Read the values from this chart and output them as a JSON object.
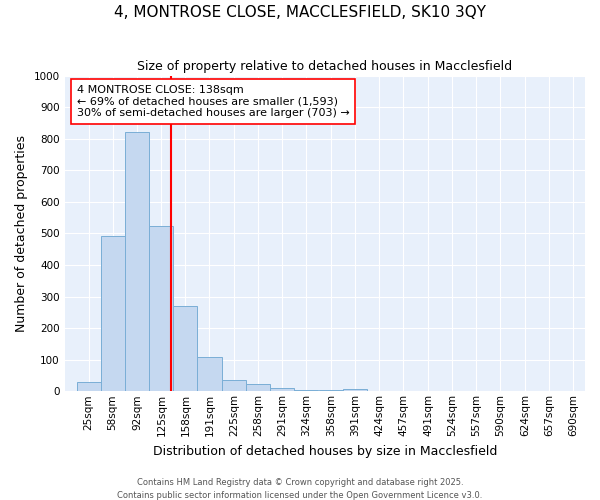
{
  "title1": "4, MONTROSE CLOSE, MACCLESFIELD, SK10 3QY",
  "title2": "Size of property relative to detached houses in Macclesfield",
  "xlabel": "Distribution of detached houses by size in Macclesfield",
  "ylabel": "Number of detached properties",
  "bar_color": "#c5d8f0",
  "bar_edge_color": "#7aaed6",
  "background_color": "#e8f0fb",
  "bin_centers": [
    25,
    58,
    92,
    125,
    158,
    191,
    225,
    258,
    291,
    324,
    358,
    391,
    424,
    457,
    491,
    524,
    557,
    590,
    624,
    657,
    690
  ],
  "bin_labels": [
    "25sqm",
    "58sqm",
    "92sqm",
    "125sqm",
    "158sqm",
    "191sqm",
    "225sqm",
    "258sqm",
    "291sqm",
    "324sqm",
    "358sqm",
    "391sqm",
    "424sqm",
    "457sqm",
    "491sqm",
    "524sqm",
    "557sqm",
    "590sqm",
    "624sqm",
    "657sqm",
    "690sqm"
  ],
  "values": [
    28,
    493,
    820,
    525,
    270,
    108,
    37,
    22,
    10,
    3,
    3,
    8,
    0,
    0,
    0,
    0,
    0,
    0,
    0,
    0,
    0
  ],
  "red_line_x": 138,
  "annotation_line1": "4 MONTROSE CLOSE: 138sqm",
  "annotation_line2": "← 69% of detached houses are smaller (1,593)",
  "annotation_line3": "30% of semi-detached houses are larger (703) →",
  "ylim": [
    0,
    1000
  ],
  "yticks": [
    0,
    100,
    200,
    300,
    400,
    500,
    600,
    700,
    800,
    900,
    1000
  ],
  "footnote1": "Contains HM Land Registry data © Crown copyright and database right 2025.",
  "footnote2": "Contains public sector information licensed under the Open Government Licence v3.0.",
  "grid_color": "#ffffff",
  "title1_fontsize": 11,
  "title2_fontsize": 9,
  "tick_fontsize": 7.5,
  "axis_label_fontsize": 9,
  "annotation_fontsize": 8
}
